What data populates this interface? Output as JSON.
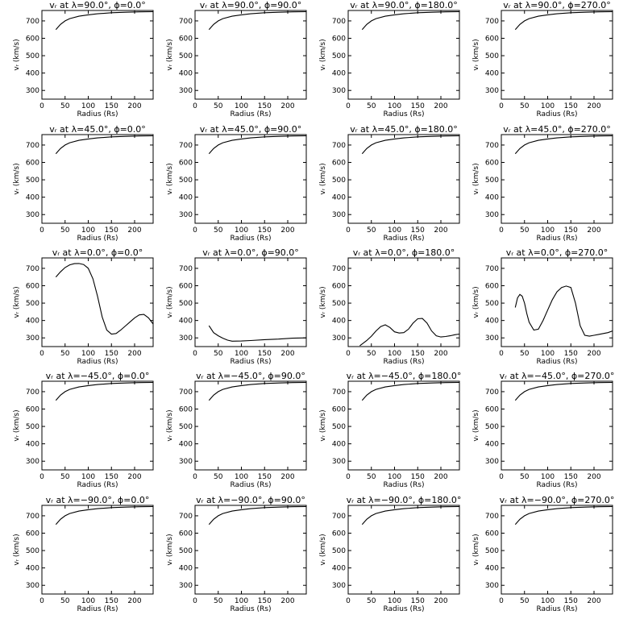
{
  "chart_data": [
    {
      "type": "line",
      "title": "vᵣ at λ=90.0°, ϕ=0.0°",
      "xlabel": "Radius (Rs)",
      "ylabel": "vᵣ (km/s)",
      "xlim": [
        0,
        240
      ],
      "ylim": [
        250,
        760
      ],
      "xticks": [
        0,
        50,
        100,
        150,
        200
      ],
      "yticks": [
        300,
        400,
        500,
        600,
        700
      ],
      "x": [
        30,
        40,
        50,
        60,
        80,
        100,
        120,
        150,
        180,
        210,
        240
      ],
      "y": [
        650,
        680,
        700,
        713,
        727,
        735,
        741,
        747,
        750,
        752,
        753
      ]
    },
    {
      "type": "line",
      "title": "vᵣ at λ=90.0°, ϕ=90.0°",
      "xlabel": "Radius (Rs)",
      "ylabel": "vᵣ (km/s)",
      "xlim": [
        0,
        240
      ],
      "ylim": [
        250,
        760
      ],
      "xticks": [
        0,
        50,
        100,
        150,
        200
      ],
      "yticks": [
        300,
        400,
        500,
        600,
        700
      ],
      "x": [
        30,
        40,
        50,
        60,
        80,
        100,
        120,
        150,
        180,
        210,
        240
      ],
      "y": [
        650,
        680,
        700,
        713,
        727,
        735,
        741,
        747,
        750,
        752,
        753
      ]
    },
    {
      "type": "line",
      "title": "vᵣ at λ=90.0°, ϕ=180.0°",
      "xlabel": "Radius (Rs)",
      "ylabel": "vᵣ (km/s)",
      "xlim": [
        0,
        240
      ],
      "ylim": [
        250,
        760
      ],
      "xticks": [
        0,
        50,
        100,
        150,
        200
      ],
      "yticks": [
        300,
        400,
        500,
        600,
        700
      ],
      "x": [
        30,
        40,
        50,
        60,
        80,
        100,
        120,
        150,
        180,
        210,
        240
      ],
      "y": [
        650,
        680,
        700,
        713,
        727,
        735,
        741,
        747,
        750,
        752,
        753
      ]
    },
    {
      "type": "line",
      "title": "vᵣ at λ=90.0°, ϕ=270.0°",
      "xlabel": "Radius (Rs)",
      "ylabel": "vᵣ (km/s)",
      "xlim": [
        0,
        240
      ],
      "ylim": [
        250,
        760
      ],
      "xticks": [
        0,
        50,
        100,
        150,
        200
      ],
      "yticks": [
        300,
        400,
        500,
        600,
        700
      ],
      "x": [
        30,
        40,
        50,
        60,
        80,
        100,
        120,
        150,
        180,
        210,
        240
      ],
      "y": [
        650,
        680,
        700,
        713,
        727,
        735,
        741,
        747,
        750,
        752,
        753
      ]
    },
    {
      "type": "line",
      "title": "vᵣ at λ=45.0°, ϕ=0.0°",
      "xlabel": "Radius (Rs)",
      "ylabel": "vᵣ (km/s)",
      "xlim": [
        0,
        240
      ],
      "ylim": [
        250,
        760
      ],
      "xticks": [
        0,
        50,
        100,
        150,
        200
      ],
      "yticks": [
        300,
        400,
        500,
        600,
        700
      ],
      "x": [
        30,
        40,
        50,
        60,
        80,
        100,
        120,
        150,
        180,
        210,
        240
      ],
      "y": [
        650,
        680,
        700,
        713,
        727,
        735,
        741,
        747,
        750,
        752,
        753
      ]
    },
    {
      "type": "line",
      "title": "vᵣ at λ=45.0°, ϕ=90.0°",
      "xlabel": "Radius (Rs)",
      "ylabel": "vᵣ (km/s)",
      "xlim": [
        0,
        240
      ],
      "ylim": [
        250,
        760
      ],
      "xticks": [
        0,
        50,
        100,
        150,
        200
      ],
      "yticks": [
        300,
        400,
        500,
        600,
        700
      ],
      "x": [
        30,
        40,
        50,
        60,
        80,
        100,
        120,
        150,
        180,
        210,
        240
      ],
      "y": [
        650,
        680,
        700,
        713,
        727,
        735,
        741,
        747,
        750,
        752,
        753
      ]
    },
    {
      "type": "line",
      "title": "vᵣ at λ=45.0°, ϕ=180.0°",
      "xlabel": "Radius (Rs)",
      "ylabel": "vᵣ (km/s)",
      "xlim": [
        0,
        240
      ],
      "ylim": [
        250,
        760
      ],
      "xticks": [
        0,
        50,
        100,
        150,
        200
      ],
      "yticks": [
        300,
        400,
        500,
        600,
        700
      ],
      "x": [
        30,
        40,
        50,
        60,
        80,
        100,
        120,
        150,
        180,
        210,
        240
      ],
      "y": [
        650,
        680,
        700,
        713,
        727,
        735,
        741,
        747,
        750,
        752,
        753
      ]
    },
    {
      "type": "line",
      "title": "vᵣ at λ=45.0°, ϕ=270.0°",
      "xlabel": "Radius (Rs)",
      "ylabel": "vᵣ (km/s)",
      "xlim": [
        0,
        240
      ],
      "ylim": [
        250,
        760
      ],
      "xticks": [
        0,
        50,
        100,
        150,
        200
      ],
      "yticks": [
        300,
        400,
        500,
        600,
        700
      ],
      "x": [
        30,
        40,
        50,
        60,
        80,
        100,
        120,
        150,
        180,
        210,
        240
      ],
      "y": [
        650,
        680,
        700,
        713,
        727,
        735,
        741,
        747,
        750,
        752,
        753
      ]
    },
    {
      "type": "line",
      "title": "vᵣ at λ=0.0°, ϕ=0.0°",
      "xlabel": "Radius (Rs)",
      "ylabel": "vᵣ (km/s)",
      "xlim": [
        0,
        240
      ],
      "ylim": [
        250,
        760
      ],
      "xticks": [
        0,
        50,
        100,
        150,
        200
      ],
      "yticks": [
        300,
        400,
        500,
        600,
        700
      ],
      "x": [
        30,
        40,
        50,
        60,
        70,
        80,
        90,
        100,
        110,
        120,
        130,
        140,
        150,
        160,
        170,
        180,
        190,
        200,
        210,
        220,
        230,
        240
      ],
      "y": [
        650,
        680,
        705,
        720,
        727,
        728,
        722,
        700,
        640,
        540,
        420,
        345,
        322,
        325,
        345,
        368,
        392,
        415,
        432,
        435,
        415,
        380
      ]
    },
    {
      "type": "line",
      "title": "vᵣ at λ=0.0°, ϕ=90.0°",
      "xlabel": "Radius (Rs)",
      "ylabel": "vᵣ (km/s)",
      "xlim": [
        0,
        240
      ],
      "ylim": [
        250,
        760
      ],
      "xticks": [
        0,
        50,
        100,
        150,
        200
      ],
      "yticks": [
        300,
        400,
        500,
        600,
        700
      ],
      "x": [
        30,
        40,
        50,
        60,
        70,
        80,
        100,
        120,
        150,
        180,
        210,
        240
      ],
      "y": [
        370,
        330,
        312,
        298,
        287,
        281,
        282,
        285,
        290,
        293,
        298,
        300
      ]
    },
    {
      "type": "line",
      "title": "vᵣ at λ=0.0°, ϕ=180.0°",
      "xlabel": "Radius (Rs)",
      "ylabel": "vᵣ (km/s)",
      "xlim": [
        0,
        240
      ],
      "ylim": [
        250,
        760
      ],
      "xticks": [
        0,
        50,
        100,
        150,
        200
      ],
      "yticks": [
        300,
        400,
        500,
        600,
        700
      ],
      "x": [
        25,
        30,
        40,
        50,
        60,
        70,
        80,
        90,
        100,
        110,
        120,
        130,
        140,
        150,
        160,
        170,
        180,
        190,
        200,
        210,
        220,
        230,
        240
      ],
      "y": [
        255,
        265,
        285,
        310,
        340,
        365,
        375,
        360,
        335,
        328,
        330,
        350,
        385,
        410,
        412,
        385,
        340,
        312,
        305,
        308,
        312,
        318,
        322
      ]
    },
    {
      "type": "line",
      "title": "vᵣ at λ=0.0°, ϕ=270.0°",
      "xlabel": "Radius (Rs)",
      "ylabel": "vᵣ (km/s)",
      "xlim": [
        0,
        240
      ],
      "ylim": [
        250,
        760
      ],
      "xticks": [
        0,
        50,
        100,
        150,
        200
      ],
      "yticks": [
        300,
        400,
        500,
        600,
        700
      ],
      "x": [
        30,
        35,
        40,
        45,
        50,
        55,
        60,
        70,
        80,
        90,
        100,
        110,
        120,
        130,
        140,
        150,
        160,
        170,
        180,
        190,
        200,
        210,
        220,
        230,
        240
      ],
      "y": [
        475,
        530,
        550,
        540,
        500,
        440,
        390,
        345,
        350,
        400,
        460,
        520,
        565,
        590,
        598,
        590,
        500,
        370,
        315,
        310,
        315,
        320,
        325,
        330,
        340
      ]
    },
    {
      "type": "line",
      "title": "vᵣ at λ=−45.0°, ϕ=0.0°",
      "xlabel": "Radius (Rs)",
      "ylabel": "vᵣ (km/s)",
      "xlim": [
        0,
        240
      ],
      "ylim": [
        250,
        760
      ],
      "xticks": [
        0,
        50,
        100,
        150,
        200
      ],
      "yticks": [
        300,
        400,
        500,
        600,
        700
      ],
      "x": [
        30,
        40,
        50,
        60,
        80,
        100,
        120,
        150,
        180,
        210,
        240
      ],
      "y": [
        650,
        680,
        700,
        713,
        727,
        735,
        741,
        747,
        750,
        752,
        753
      ]
    },
    {
      "type": "line",
      "title": "vᵣ at λ=−45.0°, ϕ=90.0°",
      "xlabel": "Radius (Rs)",
      "ylabel": "vᵣ (km/s)",
      "xlim": [
        0,
        240
      ],
      "ylim": [
        250,
        760
      ],
      "xticks": [
        0,
        50,
        100,
        150,
        200
      ],
      "yticks": [
        300,
        400,
        500,
        600,
        700
      ],
      "x": [
        30,
        40,
        50,
        60,
        80,
        100,
        120,
        150,
        180,
        210,
        240
      ],
      "y": [
        650,
        680,
        700,
        713,
        727,
        735,
        741,
        747,
        750,
        752,
        753
      ]
    },
    {
      "type": "line",
      "title": "vᵣ at λ=−45.0°, ϕ=180.0°",
      "xlabel": "Radius (Rs)",
      "ylabel": "vᵣ (km/s)",
      "xlim": [
        0,
        240
      ],
      "ylim": [
        250,
        760
      ],
      "xticks": [
        0,
        50,
        100,
        150,
        200
      ],
      "yticks": [
        300,
        400,
        500,
        600,
        700
      ],
      "x": [
        30,
        40,
        50,
        60,
        80,
        100,
        120,
        150,
        180,
        210,
        240
      ],
      "y": [
        650,
        680,
        700,
        713,
        727,
        735,
        741,
        747,
        750,
        752,
        753
      ]
    },
    {
      "type": "line",
      "title": "vᵣ at λ=−45.0°, ϕ=270.0°",
      "xlabel": "Radius (Rs)",
      "ylabel": "vᵣ (km/s)",
      "xlim": [
        0,
        240
      ],
      "ylim": [
        250,
        760
      ],
      "xticks": [
        0,
        50,
        100,
        150,
        200
      ],
      "yticks": [
        300,
        400,
        500,
        600,
        700
      ],
      "x": [
        30,
        40,
        50,
        60,
        80,
        100,
        120,
        150,
        180,
        210,
        240
      ],
      "y": [
        650,
        680,
        700,
        713,
        727,
        735,
        741,
        747,
        750,
        752,
        753
      ]
    },
    {
      "type": "line",
      "title": "vᵣ at λ=−90.0°, ϕ=0.0°",
      "xlabel": "Radius (Rs)",
      "ylabel": "vᵣ (km/s)",
      "xlim": [
        0,
        240
      ],
      "ylim": [
        250,
        760
      ],
      "xticks": [
        0,
        50,
        100,
        150,
        200
      ],
      "yticks": [
        300,
        400,
        500,
        600,
        700
      ],
      "x": [
        30,
        40,
        50,
        60,
        80,
        100,
        120,
        150,
        180,
        210,
        240
      ],
      "y": [
        650,
        680,
        700,
        713,
        727,
        735,
        741,
        747,
        750,
        752,
        753
      ]
    },
    {
      "type": "line",
      "title": "vᵣ at λ=−90.0°, ϕ=90.0°",
      "xlabel": "Radius (Rs)",
      "ylabel": "vᵣ (km/s)",
      "xlim": [
        0,
        240
      ],
      "ylim": [
        250,
        760
      ],
      "xticks": [
        0,
        50,
        100,
        150,
        200
      ],
      "yticks": [
        300,
        400,
        500,
        600,
        700
      ],
      "x": [
        30,
        40,
        50,
        60,
        80,
        100,
        120,
        150,
        180,
        210,
        240
      ],
      "y": [
        650,
        680,
        700,
        713,
        727,
        735,
        741,
        747,
        750,
        752,
        753
      ]
    },
    {
      "type": "line",
      "title": "vᵣ at λ=−90.0°, ϕ=180.0°",
      "xlabel": "Radius (Rs)",
      "ylabel": "vᵣ (km/s)",
      "xlim": [
        0,
        240
      ],
      "ylim": [
        250,
        760
      ],
      "xticks": [
        0,
        50,
        100,
        150,
        200
      ],
      "yticks": [
        300,
        400,
        500,
        600,
        700
      ],
      "x": [
        30,
        40,
        50,
        60,
        80,
        100,
        120,
        150,
        180,
        210,
        240
      ],
      "y": [
        650,
        680,
        700,
        713,
        727,
        735,
        741,
        747,
        750,
        752,
        753
      ]
    },
    {
      "type": "line",
      "title": "vᵣ at λ=−90.0°, ϕ=270.0°",
      "xlabel": "Radius (Rs)",
      "ylabel": "vᵣ (km/s)",
      "xlim": [
        0,
        240
      ],
      "ylim": [
        250,
        760
      ],
      "xticks": [
        0,
        50,
        100,
        150,
        200
      ],
      "yticks": [
        300,
        400,
        500,
        600,
        700
      ],
      "x": [
        30,
        40,
        50,
        60,
        80,
        100,
        120,
        150,
        180,
        210,
        240
      ],
      "y": [
        650,
        680,
        700,
        713,
        727,
        735,
        741,
        747,
        750,
        752,
        753
      ]
    }
  ]
}
